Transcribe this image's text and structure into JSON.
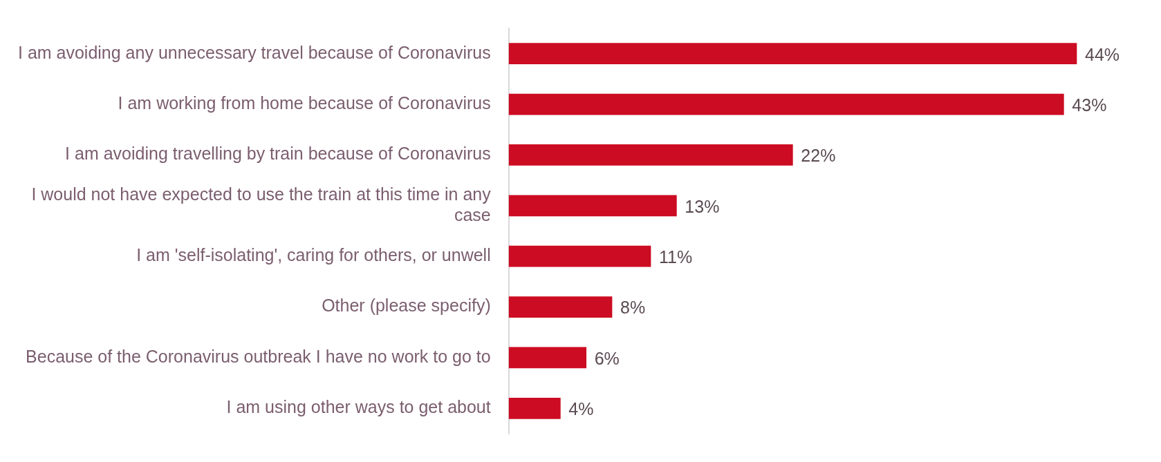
{
  "chart_data": {
    "type": "bar",
    "orientation": "horizontal",
    "categories": [
      "I am avoiding any unnecessary travel because of Coronavirus",
      "I am working from home because of Coronavirus",
      "I am avoiding travelling by train because of Coronavirus",
      "I would not have expected to use the train at this time in any case",
      "I am 'self-isolating', caring for others, or unwell",
      "Other (please specify)",
      "Because of the Coronavirus outbreak I have no work to go to",
      "I am using other ways to get about"
    ],
    "values": [
      44,
      43,
      22,
      13,
      11,
      8,
      6,
      4
    ],
    "value_labels": [
      "44%",
      "43%",
      "22%",
      "13%",
      "11%",
      "8%",
      "6%",
      "4%"
    ],
    "color": "#cc0c22",
    "grid": false,
    "legend": false,
    "tick_labels": "y"
  }
}
